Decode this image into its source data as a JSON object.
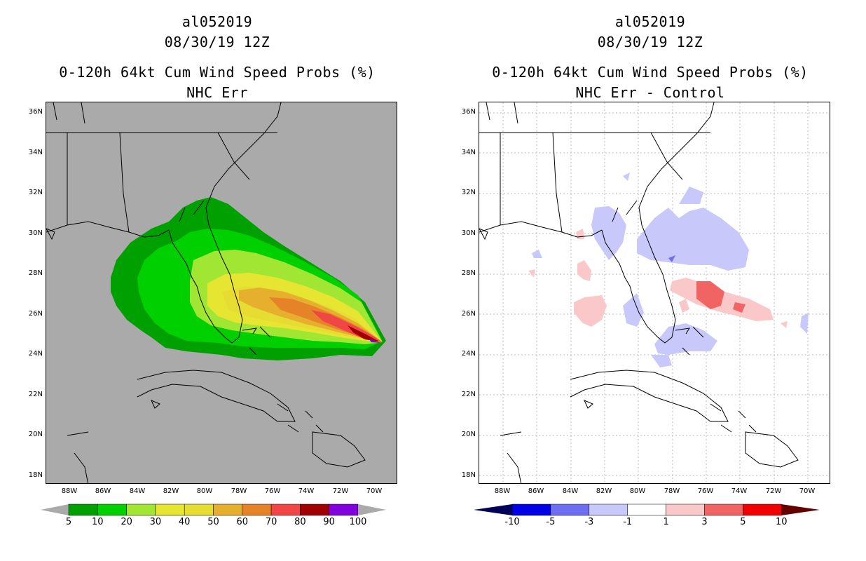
{
  "left": {
    "storm": "al052019",
    "datetime": "08/30/19 12Z",
    "product": "0-120h 64kt Cum Wind Speed Probs (%)",
    "subtitle": "NHC Err",
    "colorbar": {
      "colors": [
        "#00a000",
        "#00d000",
        "#a0e632",
        "#e6e632",
        "#e6dc32",
        "#e6af2d",
        "#e68228",
        "#f04646",
        "#a00000",
        "#8200dc"
      ],
      "labels": [
        "5",
        "10",
        "20",
        "30",
        "40",
        "50",
        "60",
        "70",
        "80",
        "90",
        "100"
      ]
    }
  },
  "right": {
    "storm": "al052019",
    "datetime": "08/30/19 12Z",
    "product": "0-120h 64kt Cum Wind Speed Probs (%)",
    "subtitle": "NHC Err - Control",
    "colorbar": {
      "colors": [
        "#0000e6",
        "#6e6ef0",
        "#c8c8fa",
        "#ffffff",
        "#fac8c8",
        "#f06464",
        "#f00000"
      ],
      "end_low": "#00005a",
      "end_high": "#640000",
      "labels": [
        "-10",
        "-5",
        "-3",
        "-1",
        "1",
        "3",
        "5",
        "10"
      ]
    }
  },
  "axes": {
    "lat_labels": [
      "36N",
      "34N",
      "32N",
      "30N",
      "28N",
      "26N",
      "24N",
      "22N",
      "20N",
      "18N"
    ],
    "lon_labels": [
      "88W",
      "86W",
      "84W",
      "82W",
      "80W",
      "78W",
      "76W",
      "74W",
      "72W",
      "70W"
    ]
  },
  "colors": {
    "ocean_left": "#aaaaaa",
    "coast": "#000000",
    "grid_right": "#bbbbbb"
  }
}
